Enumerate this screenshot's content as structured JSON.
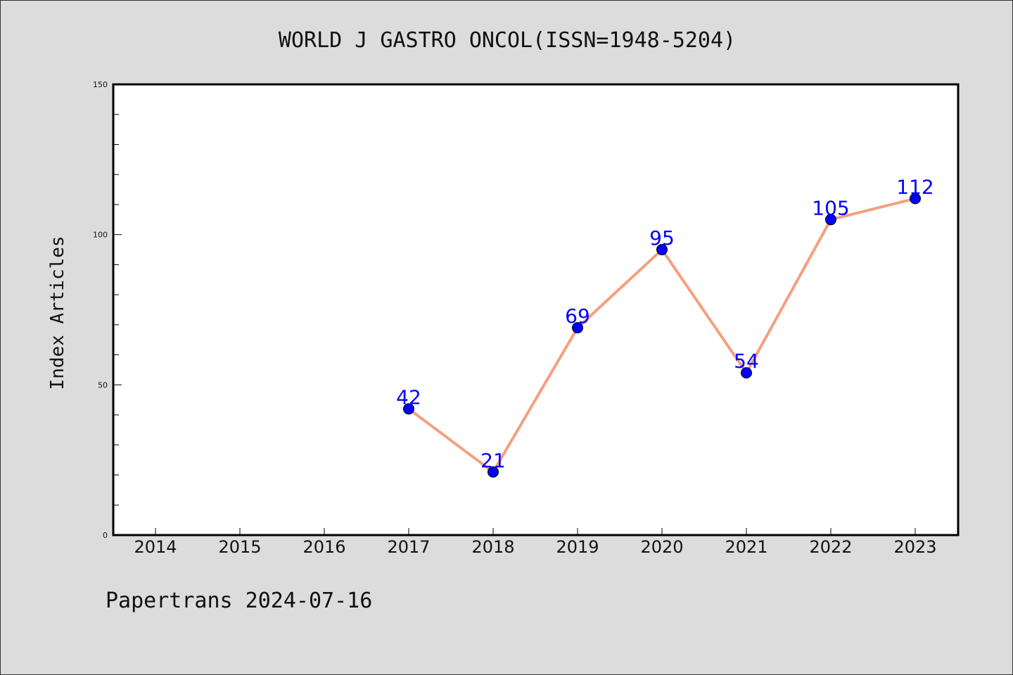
{
  "chart_data": {
    "type": "line",
    "title": "WORLD J GASTRO ONCOL(ISSN=1948-5204)",
    "xlabel": "",
    "ylabel": "Index Articles",
    "categories": [
      "2014",
      "2015",
      "2016",
      "2017",
      "2018",
      "2019",
      "2020",
      "2021",
      "2022",
      "2023"
    ],
    "series": [
      {
        "x": [
          "2017",
          "2018",
          "2019",
          "2020",
          "2021",
          "2022",
          "2023"
        ],
        "values": [
          42,
          21,
          69,
          95,
          54,
          105,
          112
        ]
      }
    ],
    "ylim": [
      0,
      150
    ],
    "yticks": [
      0,
      50,
      100,
      150
    ],
    "grid": false,
    "colors": {
      "line": "#f4a07f",
      "marker": "#0000ff",
      "label": "#0000ff",
      "plot_bg": "#ffffff",
      "page_bg": "#dcdcdc"
    }
  },
  "footer": {
    "text": "Papertrans 2024-07-16"
  }
}
